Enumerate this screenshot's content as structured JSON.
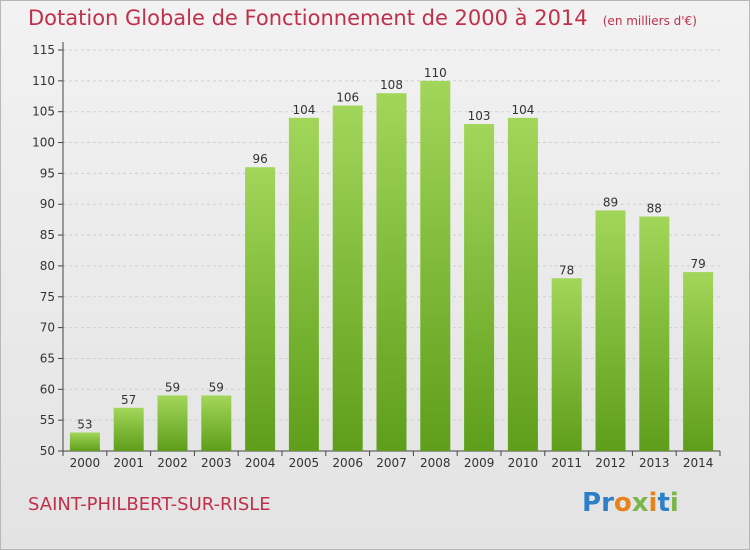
{
  "header": {
    "title": "Dotation Globale de Fonctionnement de 2000 à 2014",
    "subtitle": "(en milliers d'€)"
  },
  "footer": {
    "commune": "SAINT-PHILBERT-SUR-RISLE",
    "logo_text": "Proxiti"
  },
  "colors": {
    "bar_top": "#a2d65a",
    "bar_bottom": "#5e9e1a",
    "title": "#c0304b"
  },
  "chart_data": {
    "type": "bar",
    "title": "Dotation Globale de Fonctionnement de 2000 à 2014",
    "subtitle": "(en milliers d'€)",
    "xlabel": "",
    "ylabel": "",
    "categories": [
      "2000",
      "2001",
      "2002",
      "2003",
      "2004",
      "2005",
      "2006",
      "2007",
      "2008",
      "2009",
      "2010",
      "2011",
      "2012",
      "2013",
      "2014"
    ],
    "values": [
      53,
      57,
      59,
      59,
      96,
      104,
      106,
      108,
      110,
      103,
      104,
      78,
      89,
      88,
      79
    ],
    "ylim": [
      50,
      115
    ],
    "yticks": [
      50,
      55,
      60,
      65,
      70,
      75,
      80,
      85,
      90,
      95,
      100,
      105,
      110,
      115
    ],
    "grid": true,
    "legend": "none"
  }
}
